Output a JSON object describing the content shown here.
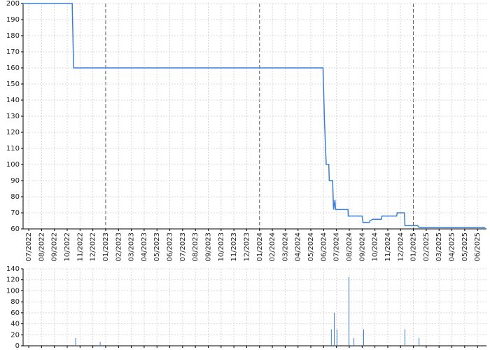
{
  "chart_data": [
    {
      "type": "line",
      "color": "#3a7dd8",
      "grid": true,
      "x": [
        -0.44,
        3.39,
        3.5,
        22.95,
        23.06,
        23.2,
        23.4,
        23.44,
        23.7,
        23.77,
        23.88,
        23.93,
        24.04,
        24.9,
        24.92,
        26.0,
        26.07,
        26.56,
        26.6,
        26.83,
        27.5,
        27.54,
        28.69,
        28.74,
        29.3,
        29.34,
        30.33,
        30.44,
        35.6
      ],
      "values": [
        200,
        200,
        160,
        160,
        128,
        100,
        100,
        90,
        90,
        72,
        78,
        72,
        72,
        72,
        68,
        68,
        64,
        64,
        65,
        66,
        66,
        68,
        68,
        70,
        70,
        62,
        62,
        61,
        61
      ],
      "xlim": [
        -0.44,
        35.7
      ],
      "ylim": [
        60,
        200
      ],
      "yticks": [
        60,
        70,
        80,
        90,
        100,
        110,
        120,
        130,
        140,
        150,
        160,
        170,
        180,
        190,
        200
      ],
      "xticks": [
        {
          "value": 0,
          "label": "07/2022"
        },
        {
          "value": 1,
          "label": "08/2022"
        },
        {
          "value": 2,
          "label": "09/2022"
        },
        {
          "value": 3,
          "label": "10/2022"
        },
        {
          "value": 4,
          "label": "11/2022"
        },
        {
          "value": 5,
          "label": "12/2022"
        },
        {
          "value": 6,
          "label": "01/2023"
        },
        {
          "value": 7,
          "label": "02/2023"
        },
        {
          "value": 8,
          "label": "03/2023"
        },
        {
          "value": 9,
          "label": "04/2023"
        },
        {
          "value": 10,
          "label": "05/2023"
        },
        {
          "value": 11,
          "label": "06/2023"
        },
        {
          "value": 12,
          "label": "07/2023"
        },
        {
          "value": 13,
          "label": "08/2023"
        },
        {
          "value": 14,
          "label": "09/2023"
        },
        {
          "value": 15,
          "label": "10/2023"
        },
        {
          "value": 16,
          "label": "11/2023"
        },
        {
          "value": 17,
          "label": "12/2023"
        },
        {
          "value": 18,
          "label": "01/2024"
        },
        {
          "value": 19,
          "label": "02/2024"
        },
        {
          "value": 20,
          "label": "03/2024"
        },
        {
          "value": 21,
          "label": "04/2024"
        },
        {
          "value": 22,
          "label": "05/2024"
        },
        {
          "value": 23,
          "label": "06/2024"
        },
        {
          "value": 24,
          "label": "07/2024"
        },
        {
          "value": 25,
          "label": "08/2024"
        },
        {
          "value": 26,
          "label": "09/2024"
        },
        {
          "value": 27,
          "label": "10/2024"
        },
        {
          "value": 28,
          "label": "11/2024"
        },
        {
          "value": 29,
          "label": "12/2024"
        },
        {
          "value": 30,
          "label": "01/2025"
        },
        {
          "value": 31,
          "label": "02/2025"
        },
        {
          "value": 32,
          "label": "03/2025"
        },
        {
          "value": 33,
          "label": "04/2025"
        },
        {
          "value": 34,
          "label": "05/2025"
        },
        {
          "value": 35,
          "label": "06/2025"
        }
      ]
    },
    {
      "type": "bar",
      "color": "#3a7dd8",
      "grid": true,
      "x": [
        3.66,
        5.57,
        23.6,
        23.83,
        24.04,
        24.97,
        25.36,
        26.12,
        29.34,
        30.44
      ],
      "values": [
        14,
        7,
        30,
        60,
        30,
        125,
        14,
        30,
        30,
        14
      ],
      "xlim": [
        -0.44,
        35.7
      ],
      "ylim": [
        0,
        140
      ],
      "yticks": [
        0,
        20,
        40,
        60,
        80,
        100,
        120,
        140
      ],
      "xticks": [
        0,
        1,
        2,
        3,
        4,
        5,
        6,
        7,
        8,
        9,
        10,
        11,
        12,
        13,
        14,
        15,
        16,
        17,
        18,
        19,
        20,
        21,
        22,
        23,
        24,
        25,
        26,
        27,
        28,
        29,
        30,
        31,
        32,
        33,
        34,
        35
      ]
    }
  ]
}
